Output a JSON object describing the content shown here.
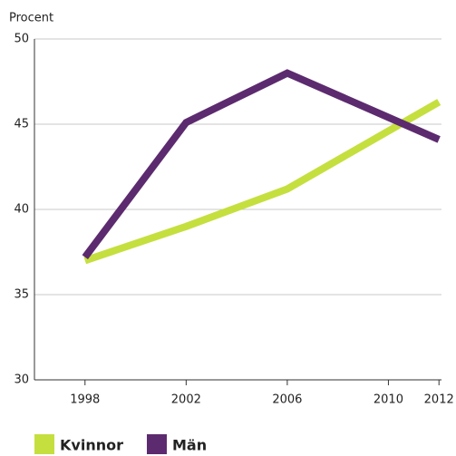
{
  "chart_data": {
    "type": "line",
    "y_label": "Procent",
    "x": [
      1998,
      2002,
      2006,
      2012
    ],
    "series": [
      {
        "name": "Kvinnor",
        "color": "#c5df3f",
        "values": [
          37,
          39,
          41.2,
          46.3
        ]
      },
      {
        "name": "Män",
        "color": "#5c2a6e",
        "values": [
          37.2,
          45.1,
          48,
          44.1
        ]
      }
    ],
    "xlim": [
      1996,
      2012.1
    ],
    "xticks": [
      1998,
      2002,
      2006,
      2010,
      2012
    ],
    "ylim": [
      30,
      50
    ],
    "yticks": [
      30,
      35,
      40,
      45,
      50
    ],
    "grid": true,
    "legend": "bottom"
  }
}
